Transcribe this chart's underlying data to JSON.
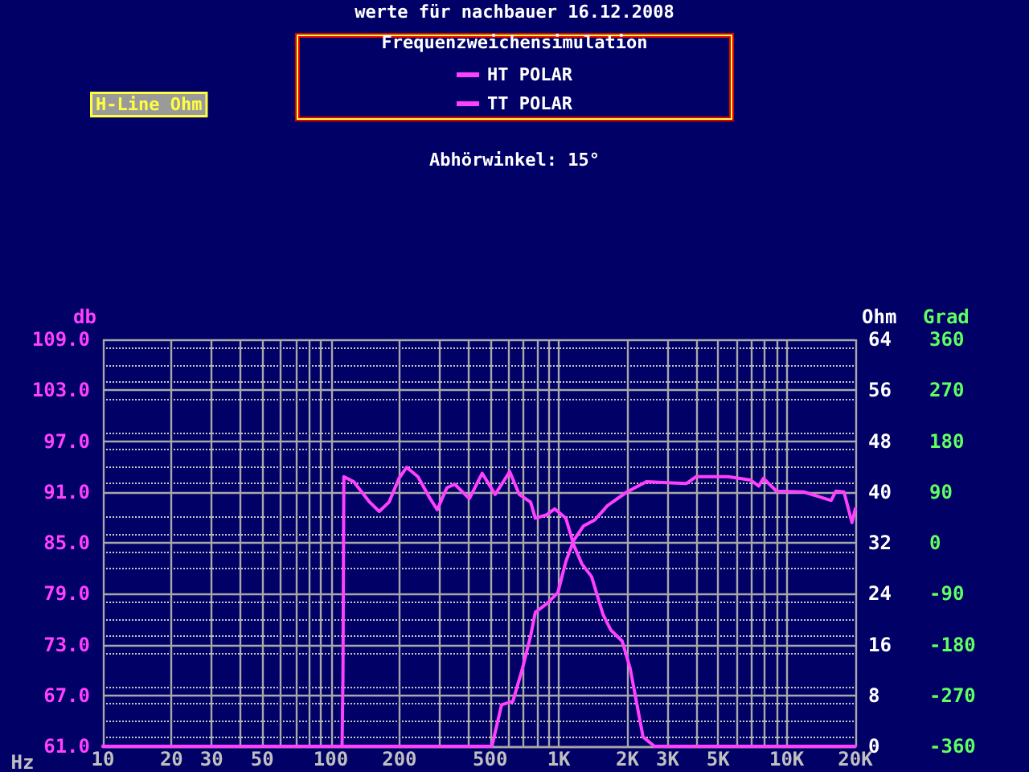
{
  "chart_data": {
    "type": "line",
    "title": "werte für nachbauer 16.12.2008",
    "subtitle": "Frequenzweichensimulation",
    "annotations": [
      "H-Line Ohm",
      "Abhörwinkel: 15°"
    ],
    "xlabel": "Hz",
    "ylabel": "db",
    "y2label": "Ohm",
    "y3label": "Grad",
    "log": "x",
    "grid": true,
    "legend": "top",
    "marker": "none",
    "line_style": "solid",
    "xlim": [
      10,
      20000
    ],
    "xticks": [
      10,
      20,
      30,
      {
        "value": 40,
        "label": null
      },
      50,
      {
        "value": 60,
        "label": null
      },
      {
        "value": 70,
        "label": null
      },
      {
        "value": 80,
        "label": null
      },
      {
        "value": 90,
        "label": null
      },
      100,
      200,
      {
        "value": 300,
        "label": null
      },
      {
        "value": 400,
        "label": null
      },
      500,
      {
        "value": 600,
        "label": null
      },
      {
        "value": 700,
        "label": null
      },
      {
        "value": 800,
        "label": null
      },
      {
        "value": 900,
        "label": null
      },
      {
        "value": 1000,
        "label": "1K"
      },
      {
        "value": 2000,
        "label": "2K"
      },
      {
        "value": 3000,
        "label": "3K"
      },
      {
        "value": 4000,
        "label": null
      },
      {
        "value": 5000,
        "label": "5K"
      },
      {
        "value": 6000,
        "label": null
      },
      {
        "value": 7000,
        "label": null
      },
      {
        "value": 8000,
        "label": null
      },
      {
        "value": 9000,
        "label": null
      },
      {
        "value": 10000,
        "label": "10K"
      },
      {
        "value": 20000,
        "label": "20K"
      }
    ],
    "ylim": [
      61,
      109
    ],
    "yticks": [
      {
        "value": 61,
        "label": "61.0"
      },
      {
        "value": 67,
        "label": "67.0"
      },
      {
        "value": 73,
        "label": "73.0"
      },
      {
        "value": 79,
        "label": "79.0"
      },
      {
        "value": 85,
        "label": "85.0"
      },
      {
        "value": 91,
        "label": "91.0"
      },
      {
        "value": 97,
        "label": "97.0"
      },
      {
        "value": 103,
        "label": "103.0"
      },
      {
        "value": 109,
        "label": "109.0"
      }
    ],
    "y2lim": [
      0,
      64
    ],
    "y2ticks": [
      0,
      8,
      16,
      24,
      32,
      40,
      48,
      56,
      64
    ],
    "y3lim": [
      -360,
      360
    ],
    "y3ticks": [
      -360,
      -270,
      -180,
      -90,
      0,
      90,
      180,
      270,
      360
    ],
    "series": [
      {
        "name": "HT POLAR",
        "color": "#ff40ff",
        "x": [
          10,
          500,
          509,
          561,
          629,
          693,
          752,
          789,
          884,
          990,
          1074,
          1164,
          1284,
          1439,
          1637,
          1991,
          2421,
          2988,
          3631,
          4000,
          5534,
          6950,
          7535,
          7907,
          9016,
          11885,
          15660,
          16440,
          17830,
          19330,
          20000
        ],
        "values": [
          61,
          61,
          61,
          65.9,
          66.3,
          70.2,
          74,
          76.8,
          77.8,
          79.1,
          82.8,
          85.3,
          87,
          87.7,
          89.4,
          91,
          92.2,
          92.1,
          92,
          92.8,
          92.8,
          92.4,
          91.7,
          92.6,
          91.1,
          91,
          90,
          91.1,
          91,
          87.4,
          89
        ]
      },
      {
        "name": "TT POLAR",
        "color": "#ff40ff",
        "x": [
          10,
          112,
          113,
          114,
          126,
          148,
          163,
          180,
          199,
          215,
          241,
          270,
          293,
          323,
          350,
          405,
          461,
          526,
          609,
          671,
          752,
          789,
          884,
          959,
          1074,
          1164,
          1264,
          1393,
          1561,
          1692,
          1897,
          2056,
          2342,
          2626,
          20000
        ],
        "values": [
          61,
          61,
          69,
          92.8,
          92.2,
          89.8,
          88.7,
          89.8,
          92.6,
          93.9,
          92.8,
          90.4,
          88.9,
          91.5,
          91.9,
          90.2,
          93.2,
          90.7,
          93.4,
          90.7,
          89.8,
          87.9,
          88.3,
          89,
          87.9,
          84.7,
          82.5,
          81,
          76.6,
          74.7,
          73.4,
          70.2,
          62.1,
          61,
          61
        ]
      }
    ]
  }
}
